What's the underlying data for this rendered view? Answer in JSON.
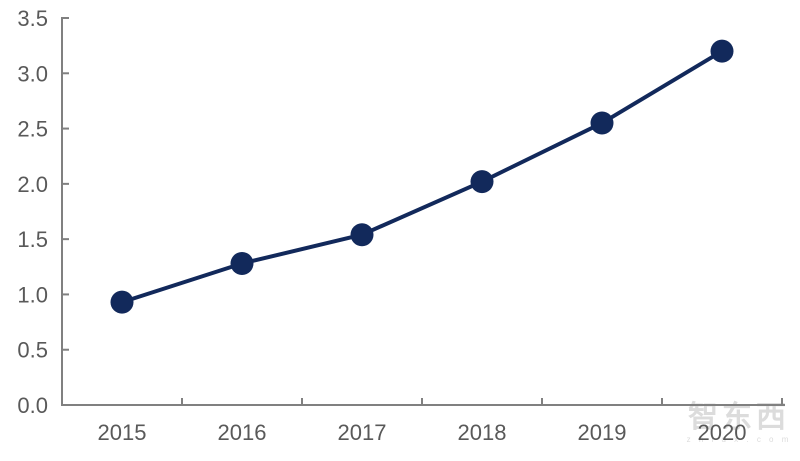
{
  "chart_data": {
    "type": "line",
    "title": "",
    "xlabel": "",
    "ylabel": "",
    "categories": [
      "2015",
      "2016",
      "2017",
      "2018",
      "2019",
      "2020"
    ],
    "series": [
      {
        "name": "value",
        "values": [
          0.93,
          1.28,
          1.54,
          2.02,
          2.55,
          3.2
        ]
      }
    ],
    "ylim": [
      0,
      3.5
    ],
    "ytick_step": 0.5,
    "ytick_labels": [
      "0.0",
      "0.5",
      "1.0",
      "1.5",
      "2.0",
      "2.5",
      "3.0",
      "3.5"
    ],
    "grid": false,
    "legend_position": "none",
    "marker": "circle",
    "colors": {
      "line": "#12295B",
      "marker": "#12295B",
      "axis": "#808080",
      "tick_label": "#595959",
      "background": "#ffffff"
    }
  },
  "watermark": {
    "logo_text": "智东西",
    "sub_text": "z h i d x . c o m"
  }
}
